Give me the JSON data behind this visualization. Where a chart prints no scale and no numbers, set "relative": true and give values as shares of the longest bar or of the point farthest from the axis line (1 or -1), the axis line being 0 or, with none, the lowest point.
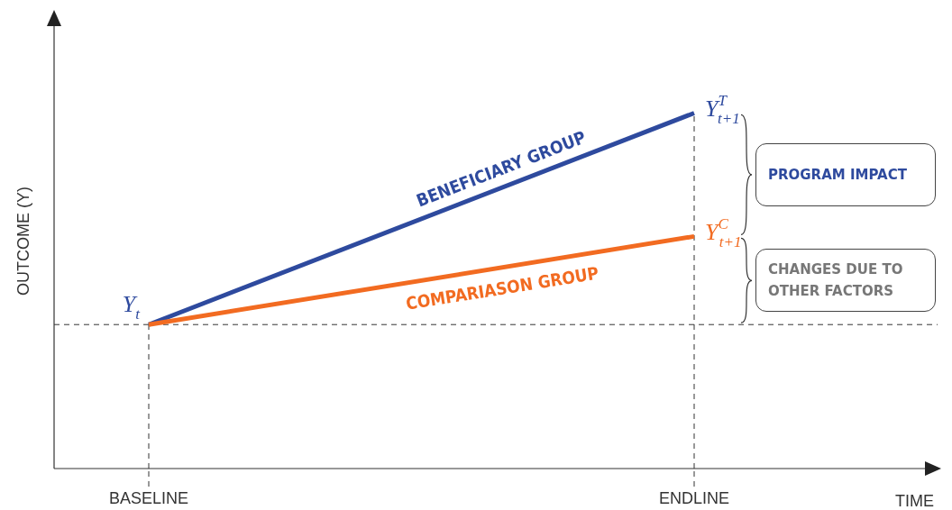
{
  "chart_data": {
    "type": "line",
    "relative": true,
    "xlabel": "TIME",
    "ylabel": "OUTCOME (Y)",
    "categories": [
      "BASELINE",
      "ENDLINE"
    ],
    "series": [
      {
        "name": "BENEFICIARY GROUP",
        "color": "#2e4a9e",
        "values": [
          0.405,
          1
        ]
      },
      {
        "name": "COMPARIASON GROUP",
        "color": "#f26b21",
        "values": [
          0.405,
          0.653
        ]
      }
    ],
    "marker": "none",
    "line_style": "solid",
    "tick_labels": "x",
    "ref_lines": [
      {
        "axis": "y",
        "value": 0.405,
        "line_style": "dashed",
        "color": "#333333"
      },
      {
        "axis": "x",
        "value": "BASELINE",
        "line_style": "dashed",
        "color": "#333333"
      },
      {
        "axis": "x",
        "value": "ENDLINE",
        "line_style": "dashed",
        "color": "#333333"
      }
    ],
    "annotations": [
      {
        "text": "Y$_{t}$",
        "x": "BASELINE",
        "y": 0.405
      },
      {
        "text": "Y$^{T}$$_{t+1}$",
        "x": "ENDLINE",
        "y": 1
      },
      {
        "text": "Y$^{C}$$_{t+1}$",
        "x": "ENDLINE",
        "y": 0.653
      },
      "PROGRAM IMPACT",
      "CHANGES DUE TO OTHER FACTORS"
    ]
  }
}
